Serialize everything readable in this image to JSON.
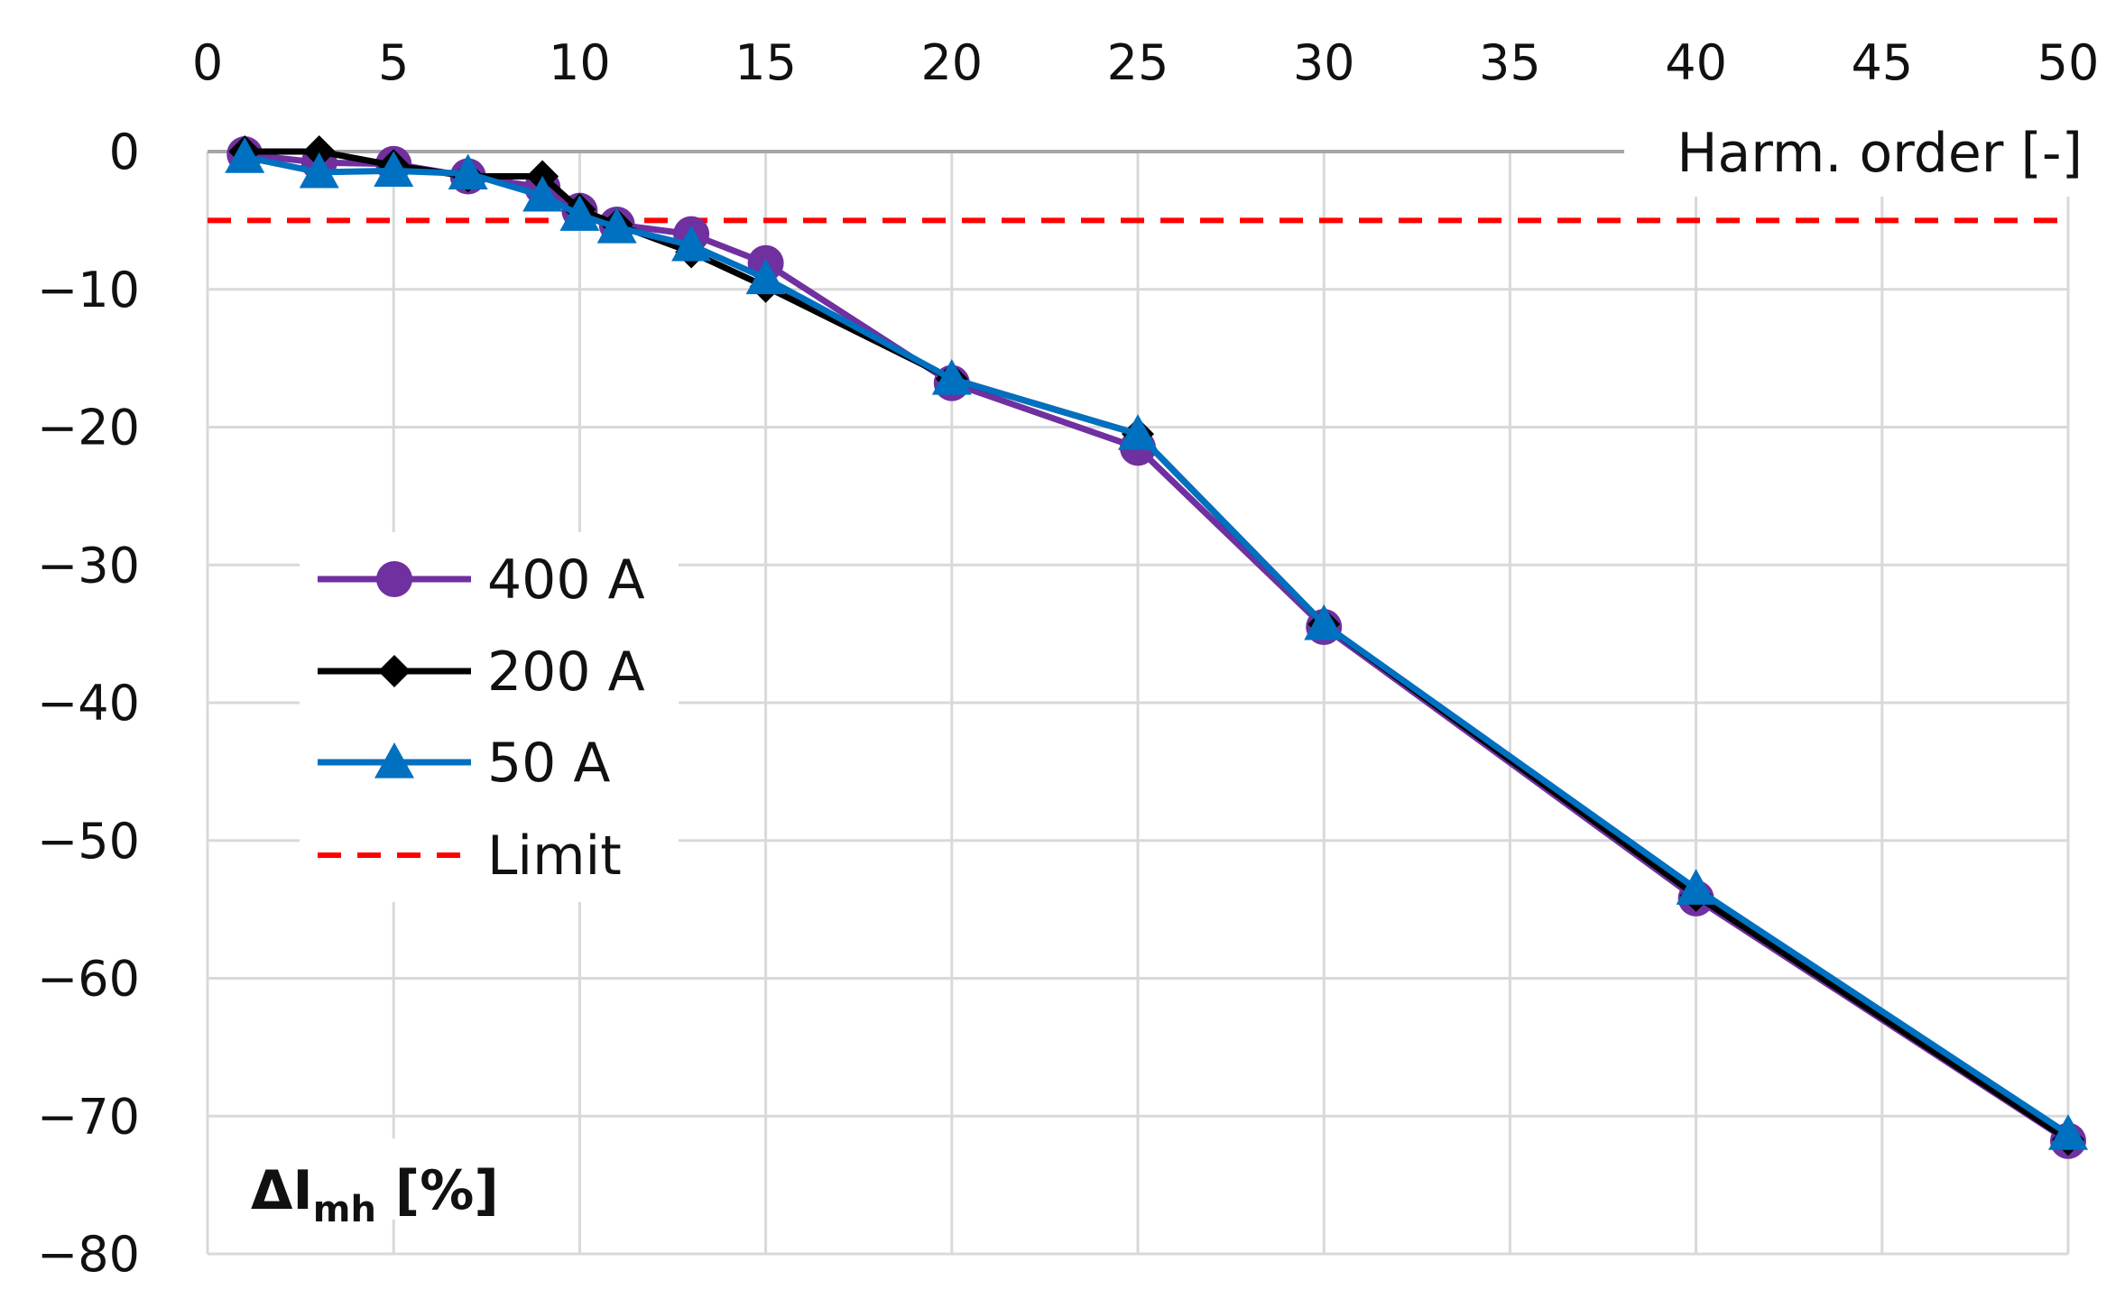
{
  "chart_data": {
    "type": "line",
    "title": "",
    "xlabel": "Harm. order [-]",
    "ylabel": "ΔI",
    "ylabel_subscript": "mh",
    "ylabel_suffix": " [%]",
    "xlim": [
      0,
      50
    ],
    "ylim": [
      -80,
      0
    ],
    "xticks": [
      0,
      5,
      10,
      15,
      20,
      25,
      30,
      35,
      40,
      45,
      50
    ],
    "yticks": [
      0,
      -10,
      -20,
      -30,
      -40,
      -50,
      -60,
      -70,
      -80
    ],
    "ytick_labels": [
      "0",
      "−10",
      "−20",
      "−30",
      "−40",
      "−50",
      "−60",
      "−70",
      "−80"
    ],
    "grid": true,
    "legend_position": "left-middle",
    "series": [
      {
        "name": "400 A",
        "color": "#7030a0",
        "marker": "circle",
        "x": [
          1,
          3,
          5,
          7,
          9,
          10,
          11,
          13,
          15,
          20,
          25,
          30,
          40,
          50
        ],
        "values": [
          -0.2,
          -0.8,
          -0.9,
          -1.8,
          -2.6,
          -4.3,
          -5.3,
          -6.0,
          -8.1,
          -16.8,
          -21.5,
          -34.5,
          -54.2,
          -71.8
        ]
      },
      {
        "name": "200 A",
        "color": "#000000",
        "marker": "diamond",
        "x": [
          1,
          3,
          5,
          7,
          9,
          10,
          11,
          13,
          15,
          20,
          25,
          30,
          40,
          50
        ],
        "values": [
          0.0,
          0.0,
          -1.0,
          -1.8,
          -1.8,
          -4.2,
          -5.3,
          -7.3,
          -9.8,
          -16.5,
          -20.5,
          -34.3,
          -54.0,
          -71.7
        ]
      },
      {
        "name": "50 A",
        "color": "#0070c0",
        "marker": "triangle",
        "x": [
          1,
          3,
          5,
          7,
          9,
          10,
          11,
          13,
          15,
          20,
          25,
          30,
          40,
          50
        ],
        "values": [
          -0.4,
          -1.5,
          -1.4,
          -1.6,
          -3.2,
          -4.6,
          -5.5,
          -6.8,
          -9.2,
          -16.5,
          -20.5,
          -34.3,
          -53.5,
          -71.3
        ]
      },
      {
        "name": "Limit",
        "color": "#ff0000",
        "marker": "none",
        "dashed": true,
        "x": [
          0,
          50
        ],
        "values": [
          -5,
          -5
        ]
      }
    ]
  }
}
